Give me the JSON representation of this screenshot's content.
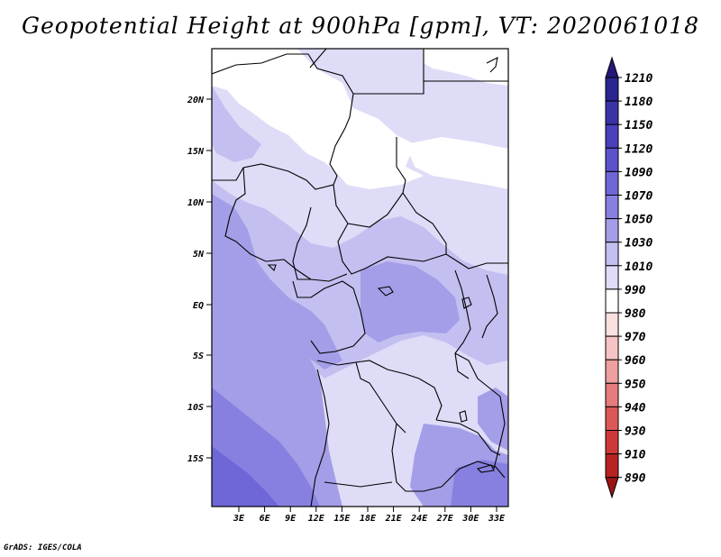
{
  "title": "Geopotential Height at 900hPa [gpm], VT: 2020061018",
  "credit": "GrADS: IGES/COLA",
  "map": {
    "lat_ticks": [
      "20N",
      "15N",
      "10N",
      "5N",
      "EQ",
      "5S",
      "10S",
      "15S"
    ],
    "lon_ticks": [
      "3E",
      "6E",
      "9E",
      "12E",
      "15E",
      "18E",
      "21E",
      "24E",
      "27E",
      "30E",
      "33E"
    ]
  },
  "colorbar": {
    "levels": [
      "1210",
      "1180",
      "1150",
      "1120",
      "1090",
      "1070",
      "1050",
      "1030",
      "1010",
      "990",
      "980",
      "970",
      "960",
      "950",
      "940",
      "930",
      "910",
      "890"
    ],
    "colors": [
      "#241878",
      "#2a2590",
      "#3a33a8",
      "#4a40bb",
      "#5b52cc",
      "#6f67d8",
      "#8880e0",
      "#a49ee8",
      "#c3bff0",
      "#dedcf7",
      "#ffffff",
      "#fbe0e0",
      "#f6c4c4",
      "#ee9f9f",
      "#e67b7b",
      "#dc5858",
      "#cf3838",
      "#b82222",
      "#9c1515"
    ]
  }
}
